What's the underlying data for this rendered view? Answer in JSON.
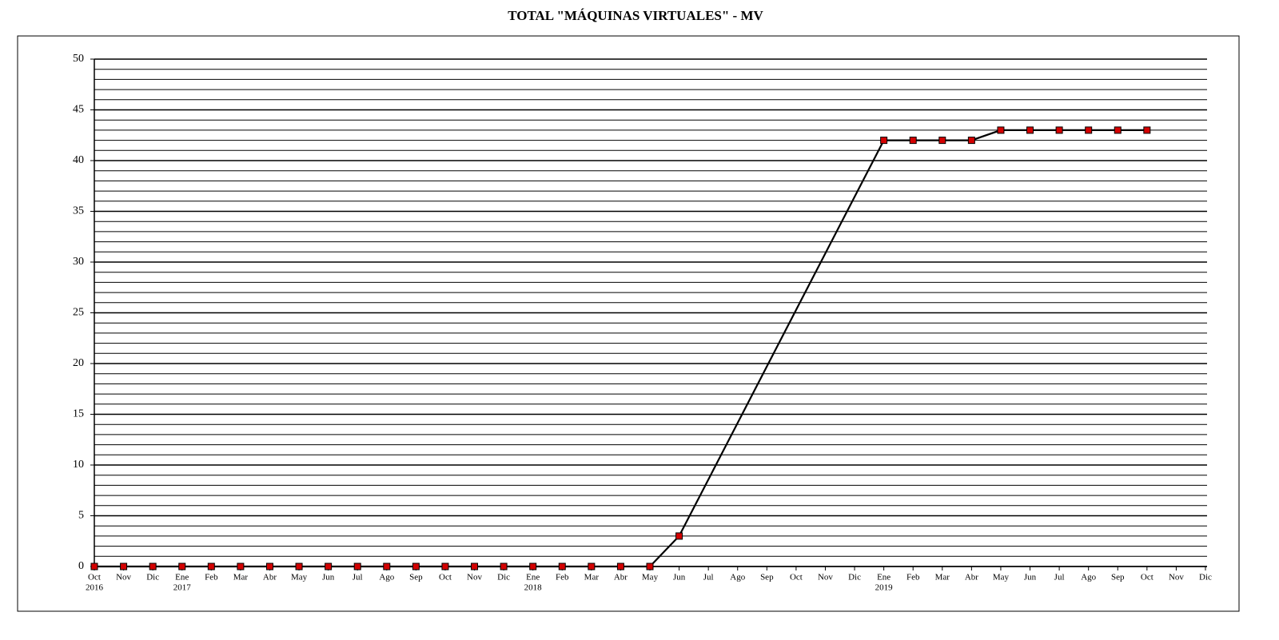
{
  "chart_data": {
    "type": "line",
    "title": "TOTAL \"MÁQUINAS VIRTUALES\" - MV",
    "categories": [
      "Oct",
      "Nov",
      "Dic",
      "Ene",
      "Feb",
      "Mar",
      "Abr",
      "May",
      "Jun",
      "Jul",
      "Ago",
      "Sep",
      "Oct",
      "Nov",
      "Dic",
      "Ene",
      "Feb",
      "Mar",
      "Abr",
      "May",
      "Jun",
      "Jul",
      "Ago",
      "Sep",
      "Oct",
      "Nov",
      "Dic",
      "Ene",
      "Feb",
      "Mar",
      "Abr",
      "May",
      "Jun",
      "Jul",
      "Ago",
      "Sep",
      "Oct",
      "Nov",
      "Dic"
    ],
    "years": [
      "2016",
      null,
      null,
      "2017",
      null,
      null,
      null,
      null,
      null,
      null,
      null,
      null,
      null,
      null,
      null,
      "2018",
      null,
      null,
      null,
      null,
      null,
      null,
      null,
      null,
      null,
      null,
      null,
      "2019",
      null,
      null,
      null,
      null,
      null,
      null,
      null,
      null,
      null,
      null,
      null
    ],
    "series": [
      {
        "name": "MV",
        "color": "#000000",
        "marker_color": "#d40000",
        "values": [
          0,
          0,
          0,
          0,
          0,
          0,
          0,
          0,
          0,
          0,
          0,
          0,
          0,
          0,
          0,
          0,
          0,
          0,
          0,
          0,
          3,
          null,
          null,
          null,
          null,
          null,
          null,
          42,
          42,
          42,
          42,
          43,
          43,
          43,
          43,
          43,
          43,
          null,
          null
        ]
      }
    ],
    "connect_gaps": true,
    "ylim": [
      0,
      50
    ],
    "yticks": [
      0,
      5,
      10,
      15,
      20,
      25,
      30,
      35,
      40,
      45,
      50
    ],
    "yminorticks": [
      1,
      2,
      3,
      4,
      6,
      7,
      8,
      9,
      11,
      12,
      13,
      14,
      16,
      17,
      18,
      19,
      21,
      22,
      23,
      24,
      26,
      27,
      28,
      29,
      31,
      32,
      33,
      34,
      36,
      37,
      38,
      39,
      41,
      42,
      43,
      44,
      46,
      47,
      48,
      49
    ],
    "grid": true
  }
}
